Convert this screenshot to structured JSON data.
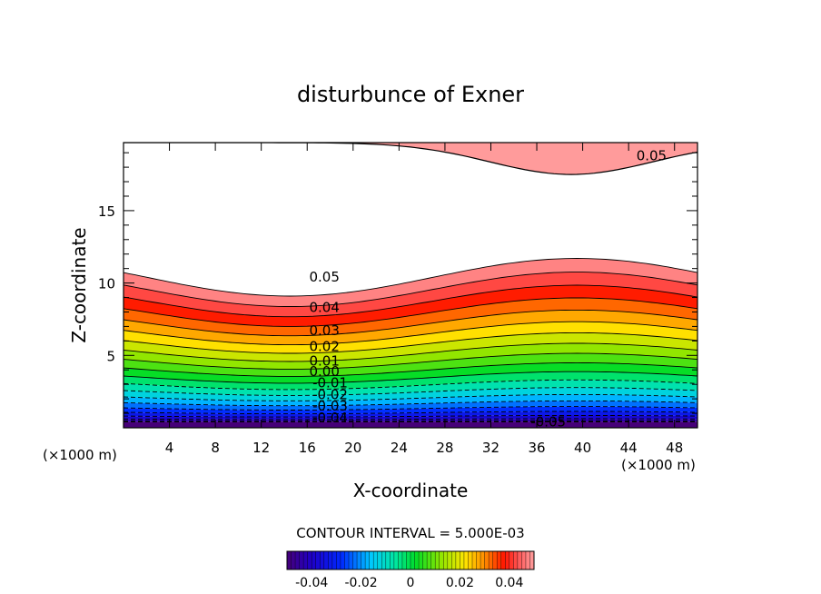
{
  "chart_data": {
    "type": "contour",
    "title": "disturbunce of Exner",
    "xlabel": "X-coordinate",
    "ylabel": "Z-coordinate",
    "x_units_left": "(×1000 m)",
    "x_units_right": "(×1000 m)",
    "xlim": [
      0,
      50
    ],
    "ylim": [
      0,
      19.7
    ],
    "x_ticks": [
      4,
      8,
      12,
      16,
      20,
      24,
      28,
      32,
      36,
      40,
      44,
      48
    ],
    "y_ticks": [
      5,
      10,
      15
    ],
    "x_tick_labels": [
      "4",
      "8",
      "12",
      "16",
      "20",
      "24",
      "28",
      "32",
      "36",
      "40",
      "44",
      "48"
    ],
    "y_tick_labels": [
      "5",
      "10",
      "15"
    ],
    "contour_interval_text": "CONTOUR INTERVAL = 5.000E-03",
    "colorbar": {
      "range": [
        -0.05,
        0.05
      ],
      "tick_labels": [
        "-0.04",
        "-0.02",
        "0",
        "0.02",
        "0.04"
      ],
      "tick_values": [
        -0.04,
        -0.02,
        0,
        0.02,
        0.04
      ]
    },
    "contour_labels": [
      {
        "text": "0.05",
        "x": 17.5,
        "y": 10.4
      },
      {
        "text": "0.04",
        "x": 17.5,
        "y": 8.3
      },
      {
        "text": "0.03",
        "x": 17.5,
        "y": 6.7
      },
      {
        "text": "0.02",
        "x": 17.5,
        "y": 5.6
      },
      {
        "text": "0.01",
        "x": 17.5,
        "y": 4.6
      },
      {
        "text": "0.00",
        "x": 17.5,
        "y": 3.9
      },
      {
        "text": "-0.01",
        "x": 18.0,
        "y": 3.1
      },
      {
        "text": "-0.02",
        "x": 18.0,
        "y": 2.3
      },
      {
        "text": "-0.03",
        "x": 18.0,
        "y": 1.5
      },
      {
        "text": "-0.04",
        "x": 18.0,
        "y": 0.7
      },
      {
        "text": "0.05",
        "x": 46.0,
        "y": 18.8
      },
      {
        "text": "-0.05",
        "x": 37.0,
        "y": 0.4
      }
    ],
    "field_description_levels": [
      0.05,
      0.045,
      0.04,
      0.035,
      0.03,
      0.025,
      0.02,
      0.015,
      0.01,
      0.005,
      0.0,
      -0.005,
      -0.01,
      -0.015,
      -0.02,
      -0.025,
      -0.03,
      -0.035,
      -0.04,
      -0.045,
      -0.05
    ]
  }
}
